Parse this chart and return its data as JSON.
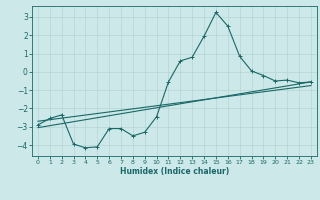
{
  "xlabel": "Humidex (Indice chaleur)",
  "ylabel": "",
  "bg_color": "#cce8e8",
  "grid_color": "#b8d8d8",
  "line_color": "#1a6868",
  "xlim": [
    -0.5,
    23.5
  ],
  "ylim": [
    -4.6,
    3.6
  ],
  "yticks": [
    -4,
    -3,
    -2,
    -1,
    0,
    1,
    2,
    3
  ],
  "xticks": [
    0,
    1,
    2,
    3,
    4,
    5,
    6,
    7,
    8,
    9,
    10,
    11,
    12,
    13,
    14,
    15,
    16,
    17,
    18,
    19,
    20,
    21,
    22,
    23
  ],
  "line1_x": [
    0,
    1,
    2,
    3,
    4,
    5,
    6,
    7,
    8,
    9,
    10,
    11,
    12,
    13,
    14,
    15,
    16,
    17,
    18,
    19,
    20,
    21,
    22,
    23
  ],
  "line1_y": [
    -2.9,
    -2.55,
    -2.35,
    -3.95,
    -4.15,
    -4.1,
    -3.1,
    -3.1,
    -3.5,
    -3.3,
    -2.45,
    -0.55,
    0.6,
    0.8,
    1.95,
    3.25,
    2.5,
    0.85,
    0.05,
    -0.2,
    -0.5,
    -0.45,
    -0.6,
    -0.55
  ],
  "line2_x": [
    0,
    23
  ],
  "line2_y": [
    -3.05,
    -0.55
  ],
  "line3_x": [
    0,
    23
  ],
  "line3_y": [
    -2.7,
    -0.75
  ]
}
